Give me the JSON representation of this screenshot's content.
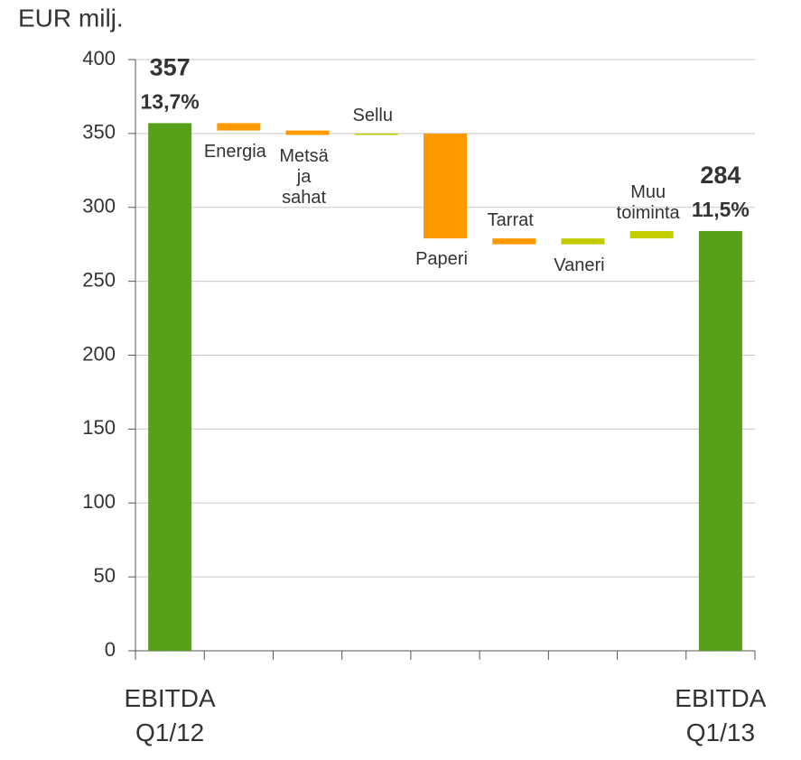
{
  "chart_data": {
    "type": "waterfall",
    "y_label": "EUR milj.",
    "categories": [
      "EBITDA Q1/12",
      "Energia",
      "Metsä ja sahat",
      "Sellu",
      "Paperi",
      "Tarrat",
      "Vaneri",
      "Muu toiminta",
      "EBITDA Q1/13"
    ],
    "measures": [
      "total",
      "relative",
      "relative",
      "relative",
      "relative",
      "relative",
      "relative",
      "relative",
      "total"
    ],
    "values": [
      357,
      -5,
      -3,
      1,
      -71,
      -4,
      4,
      5,
      284
    ],
    "margins": [
      "13,7%",
      null,
      null,
      null,
      null,
      null,
      null,
      null,
      "11,5%"
    ],
    "colors": {
      "total": "#58a01a",
      "decrease": "#ff9900",
      "increase": "#c2cd00"
    },
    "ylim": [
      0,
      400
    ],
    "yticks": [
      0,
      50,
      100,
      150,
      200,
      250,
      300,
      350,
      400
    ],
    "grid": true
  }
}
